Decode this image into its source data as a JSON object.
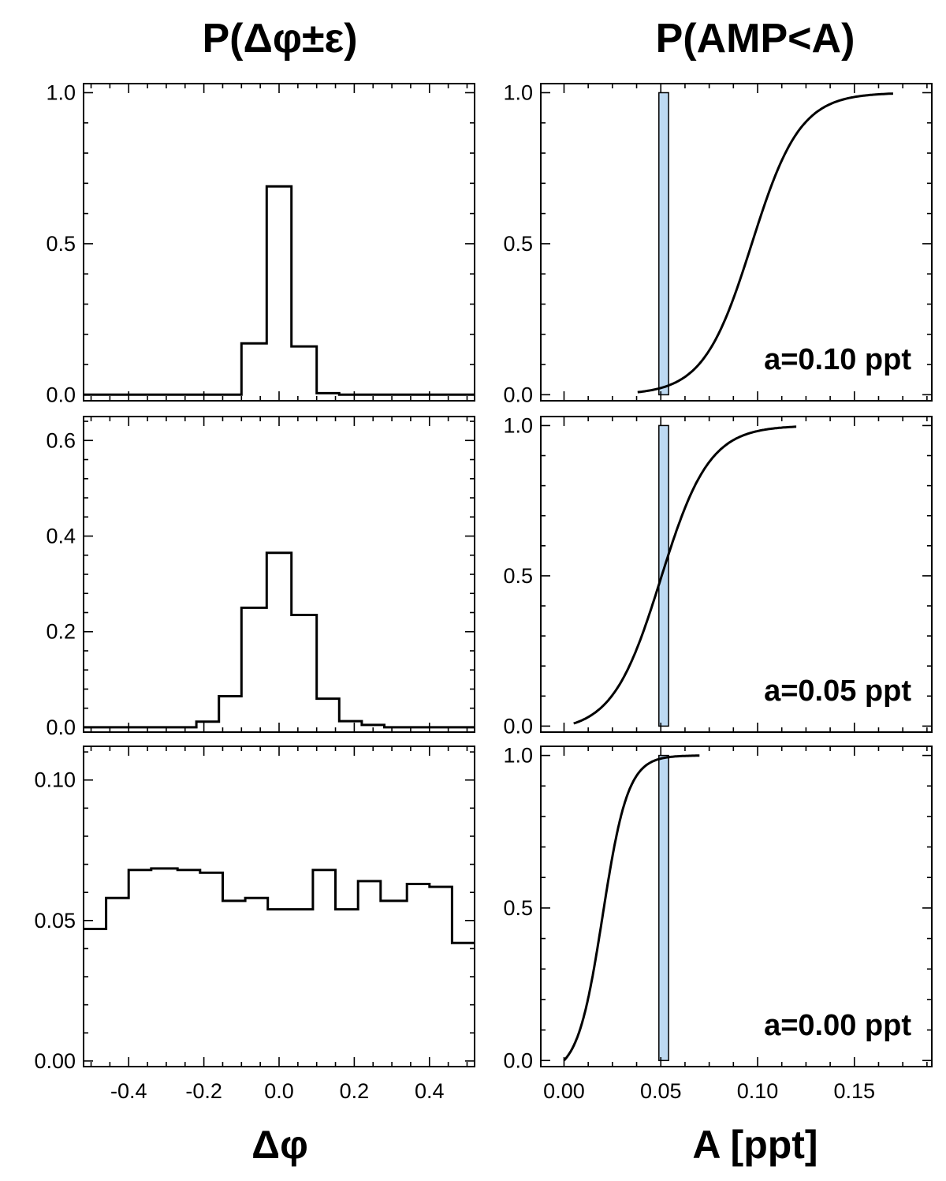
{
  "titles": {
    "left": "P(Δφ±ε)",
    "right": "P(AMP<A)"
  },
  "axis_titles": {
    "left_x": "Δφ",
    "right_x": "A [ppt]"
  },
  "colors": {
    "line": "#000000",
    "bar_fill": "#bdd9f2",
    "bar_stroke": "#000000"
  },
  "chart_data": [
    {
      "id": "hist-top",
      "type": "histogram",
      "title": "P(Δφ±ε)",
      "xlabel": "",
      "ylabel": "",
      "xlim": [
        -0.52,
        0.52
      ],
      "ylim": [
        -0.02,
        1.03
      ],
      "xticks": [
        -0.4,
        -0.2,
        0.0,
        0.2,
        0.4
      ],
      "xticklabels": [
        "-0.4",
        "-0.2",
        "0.0",
        "0.2",
        "0.4"
      ],
      "show_xticklabels": false,
      "yticks": [
        0.0,
        0.5,
        1.0
      ],
      "yticklabels": [
        "0.0",
        "0.5",
        "1.0"
      ],
      "bin_edges": [
        -0.52,
        -0.1,
        -0.033,
        0.033,
        0.1,
        0.16,
        0.52
      ],
      "values": [
        0.0,
        0.17,
        0.69,
        0.16,
        0.005,
        0.0
      ]
    },
    {
      "id": "hist-middle",
      "type": "histogram",
      "xlabel": "",
      "ylabel": "",
      "xlim": [
        -0.52,
        0.52
      ],
      "ylim": [
        -0.01,
        0.65
      ],
      "xticks": [
        -0.4,
        -0.2,
        0.0,
        0.2,
        0.4
      ],
      "xticklabels": [
        "-0.4",
        "-0.2",
        "0.0",
        "0.2",
        "0.4"
      ],
      "show_xticklabels": false,
      "yticks": [
        0.0,
        0.2,
        0.4,
        0.6
      ],
      "yticklabels": [
        "0.0",
        "0.2",
        "0.4",
        "0.6"
      ],
      "bin_edges": [
        -0.52,
        -0.22,
        -0.16,
        -0.1,
        -0.033,
        0.033,
        0.1,
        0.16,
        0.22,
        0.28,
        0.52
      ],
      "values": [
        0.0,
        0.012,
        0.065,
        0.25,
        0.365,
        0.235,
        0.06,
        0.013,
        0.005,
        0.0
      ]
    },
    {
      "id": "hist-bottom",
      "type": "histogram",
      "xlabel": "Δφ",
      "ylabel": "",
      "xlim": [
        -0.52,
        0.52
      ],
      "ylim": [
        -0.002,
        0.112
      ],
      "xticks": [
        -0.4,
        -0.2,
        0.0,
        0.2,
        0.4
      ],
      "xticklabels": [
        "-0.4",
        "-0.2",
        "0.0",
        "0.2",
        "0.4"
      ],
      "show_xticklabels": true,
      "yticks": [
        0.0,
        0.05,
        0.1
      ],
      "yticklabels": [
        "0.00",
        "0.05",
        "0.10"
      ],
      "bin_edges": [
        -0.52,
        -0.46,
        -0.4,
        -0.34,
        -0.27,
        -0.21,
        -0.15,
        -0.09,
        -0.03,
        0.03,
        0.09,
        0.15,
        0.21,
        0.27,
        0.34,
        0.4,
        0.46,
        0.52
      ],
      "values": [
        0.047,
        0.058,
        0.068,
        0.0685,
        0.068,
        0.067,
        0.057,
        0.058,
        0.054,
        0.054,
        0.068,
        0.054,
        0.064,
        0.057,
        0.063,
        0.062,
        0.042
      ]
    },
    {
      "id": "cdf-top",
      "type": "line",
      "title": "P(AMP<A)",
      "xlabel": "",
      "ylabel": "",
      "xlim": [
        -0.012,
        0.19
      ],
      "ylim": [
        -0.02,
        1.03
      ],
      "xticks": [
        0.0,
        0.05,
        0.1,
        0.15
      ],
      "xticklabels": [
        "0.00",
        "0.05",
        "0.10",
        "0.15"
      ],
      "show_xticklabels": false,
      "yticks": [
        0.0,
        0.5,
        1.0
      ],
      "yticklabels": [
        "0.0",
        "0.5",
        "1.0"
      ],
      "cdf_center": 0.097,
      "cdf_scale": 0.0125,
      "x_range": [
        0.038,
        0.17
      ],
      "bar": {
        "x0": 0.049,
        "x1": 0.054,
        "height": 1.0
      },
      "annotation": "a=0.10 ppt"
    },
    {
      "id": "cdf-middle",
      "type": "line",
      "xlabel": "",
      "ylabel": "",
      "xlim": [
        -0.012,
        0.19
      ],
      "ylim": [
        -0.02,
        1.03
      ],
      "xticks": [
        0.0,
        0.05,
        0.1,
        0.15
      ],
      "xticklabels": [
        "0.00",
        "0.05",
        "0.10",
        "0.15"
      ],
      "show_xticklabels": false,
      "yticks": [
        0.0,
        0.5,
        1.0
      ],
      "yticklabels": [
        "0.0",
        "0.5",
        "1.0"
      ],
      "cdf_center": 0.05,
      "cdf_scale": 0.0125,
      "x_range": [
        0.005,
        0.12
      ],
      "bar": {
        "x0": 0.049,
        "x1": 0.054,
        "height": 1.0
      },
      "annotation": "a=0.05 ppt"
    },
    {
      "id": "cdf-bottom",
      "type": "line",
      "xlabel": "A [ppt]",
      "ylabel": "",
      "xlim": [
        -0.012,
        0.19
      ],
      "ylim": [
        -0.02,
        1.03
      ],
      "xticks": [
        0.0,
        0.05,
        0.1,
        0.15
      ],
      "xticklabels": [
        "0.00",
        "0.05",
        "0.10",
        "0.15"
      ],
      "show_xticklabels": true,
      "yticks": [
        0.0,
        0.5,
        1.0
      ],
      "yticklabels": [
        "0.0",
        "0.5",
        "1.0"
      ],
      "cdf_center": 0.02,
      "cdf_scale": 0.0065,
      "x_range": [
        0.0,
        0.07
      ],
      "bar": {
        "x0": 0.049,
        "x1": 0.054,
        "height": 1.0
      },
      "annotation": "a=0.00 ppt"
    }
  ]
}
